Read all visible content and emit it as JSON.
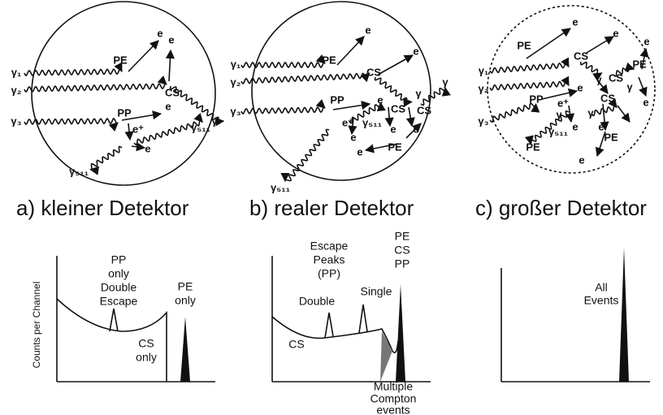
{
  "y_axis_label": "Counts per Channel",
  "panels": [
    {
      "caption": "a) kleiner Detektor",
      "diagram_labels": [
        "γ₁",
        "γ₂",
        "γ₃",
        "PE",
        "e",
        "CS",
        "e",
        "γ",
        "PP",
        "e",
        "e⁺",
        "e",
        "γ₅₁₁",
        "γ₅₁₁"
      ],
      "spectrum_labels": [
        "PP",
        "only",
        "Double",
        "Escape",
        "PE",
        "only",
        "CS",
        "only"
      ]
    },
    {
      "caption": "b) realer Detektor",
      "diagram_labels": [
        "γ₁",
        "γ₂",
        "γ₃",
        "PE",
        "e",
        "CS",
        "e",
        "γ",
        "PP",
        "e",
        "CS",
        "CS",
        "γ",
        "e",
        "e⁺",
        "γ₅₁₁",
        "e",
        "PE",
        "e",
        "e",
        "γ₅₁₁"
      ],
      "spectrum_labels": [
        "Escape",
        "Peaks",
        "(PP)",
        "Double",
        "Single",
        "PE",
        "CS",
        "PP",
        "CS",
        "Multiple",
        "Compton",
        "events"
      ]
    },
    {
      "caption": "c) großer Detektor",
      "diagram_labels": [
        "γ₁",
        "γ₂",
        "γ₃",
        "PE",
        "e",
        "CS",
        "e",
        "γ",
        "CS",
        "PE",
        "e",
        "γ",
        "CS",
        "e",
        "PP",
        "e",
        "e⁺",
        "γ",
        "e",
        "γ₅₁₁",
        "γ",
        "e",
        "PE",
        "e",
        "PE"
      ],
      "spectrum_labels": [
        "All",
        "Events"
      ]
    }
  ]
}
